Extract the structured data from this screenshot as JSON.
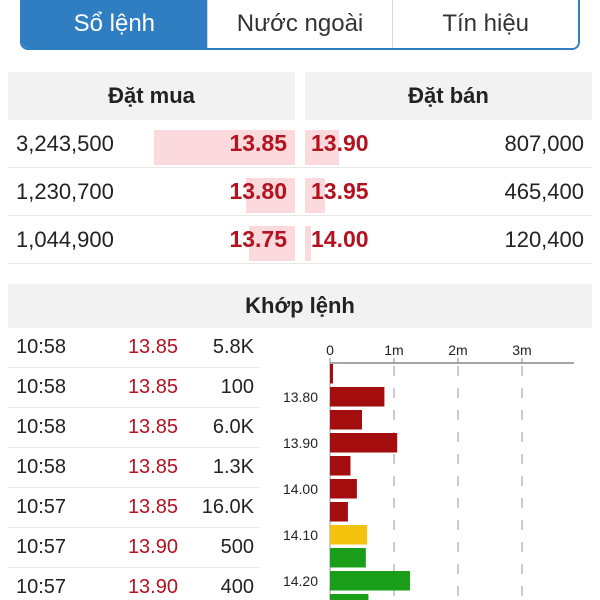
{
  "tabs": [
    "Sổ lệnh",
    "Nước ngoài",
    "Tín hiệu"
  ],
  "orderbook": {
    "buy_header": "Đặt mua",
    "sell_header": "Đặt bán",
    "rows": [
      {
        "buy_vol": "3,243,500",
        "buy_price": "13.85",
        "buy_fill": 0.49,
        "sell_price": "13.90",
        "sell_vol": "807,000",
        "sell_fill": 0.12
      },
      {
        "buy_vol": "1,230,700",
        "buy_price": "13.80",
        "buy_fill": 0.17,
        "sell_price": "13.95",
        "sell_vol": "465,400",
        "sell_fill": 0.07
      },
      {
        "buy_vol": "1,044,900",
        "buy_price": "13.75",
        "buy_fill": 0.16,
        "sell_price": "14.00",
        "sell_vol": "120,400",
        "sell_fill": 0.02
      }
    ]
  },
  "match": {
    "title": "Khớp lệnh",
    "trades": [
      {
        "time": "10:58",
        "price": "13.85",
        "vol": "5.8K"
      },
      {
        "time": "10:58",
        "price": "13.85",
        "vol": "100"
      },
      {
        "time": "10:58",
        "price": "13.85",
        "vol": "6.0K"
      },
      {
        "time": "10:58",
        "price": "13.85",
        "vol": "1.3K"
      },
      {
        "time": "10:57",
        "price": "13.85",
        "vol": "16.0K"
      },
      {
        "time": "10:57",
        "price": "13.90",
        "vol": "500"
      },
      {
        "time": "10:57",
        "price": "13.90",
        "vol": "400"
      }
    ]
  },
  "chart_data": {
    "type": "bar",
    "orientation": "horizontal",
    "x_ticks": [
      "0",
      "1m",
      "2m",
      "3m"
    ],
    "x_tick_values": [
      0,
      1000000,
      2000000,
      3000000
    ],
    "y_labels": [
      "13.80",
      "13.90",
      "14.00",
      "14.10",
      "14.20"
    ],
    "bars": [
      {
        "price": 13.75,
        "value": 40000,
        "color": "#a30d0d"
      },
      {
        "price": 13.8,
        "value": 850000,
        "color": "#a30d0d"
      },
      {
        "price": 13.85,
        "value": 500000,
        "color": "#a30d0d"
      },
      {
        "price": 13.9,
        "value": 1050000,
        "color": "#a30d0d"
      },
      {
        "price": 13.95,
        "value": 320000,
        "color": "#a30d0d"
      },
      {
        "price": 14.0,
        "value": 420000,
        "color": "#a30d0d"
      },
      {
        "price": 14.05,
        "value": 280000,
        "color": "#a30d0d"
      },
      {
        "price": 14.1,
        "value": 580000,
        "color": "#f4c20d"
      },
      {
        "price": 14.15,
        "value": 560000,
        "color": "#1a9e1a"
      },
      {
        "price": 14.2,
        "value": 1250000,
        "color": "#1a9e1a"
      },
      {
        "price": 14.25,
        "value": 600000,
        "color": "#1a9e1a"
      }
    ]
  }
}
